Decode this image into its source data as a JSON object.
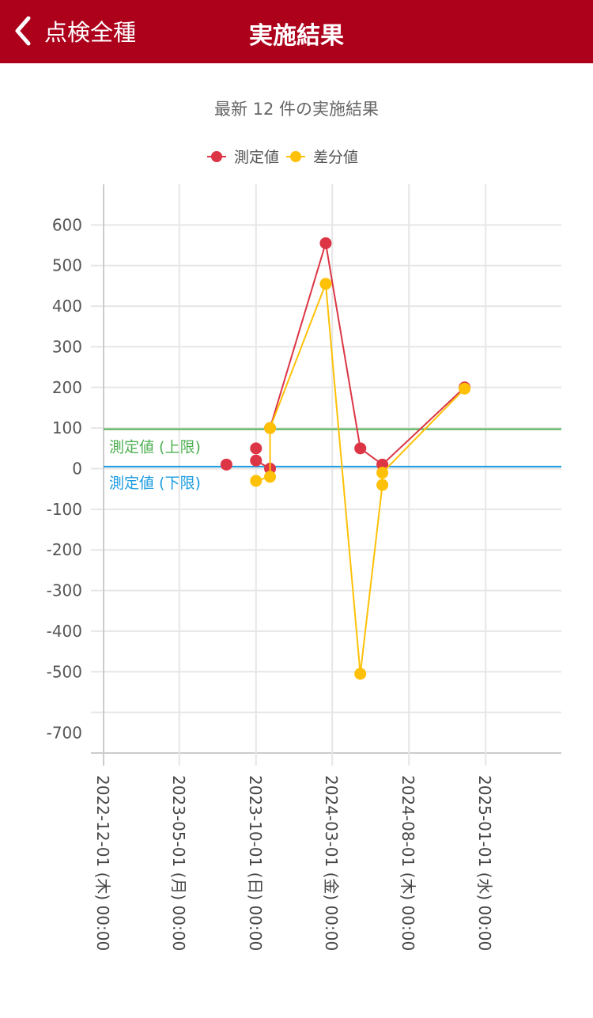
{
  "header": {
    "back_label": "点検全種",
    "title": "実施結果",
    "theme_color": "#ad001b"
  },
  "chart_data": {
    "type": "line",
    "title": "最新 12 件の実施結果",
    "legend_position": "top",
    "grid": true,
    "ylim": [
      -700,
      700
    ],
    "xlim": [
      "2022-12-01",
      "2025-06-01"
    ],
    "y_ticks": [
      "600",
      "500",
      "400",
      "300",
      "200",
      "100",
      "0",
      "-100",
      "-200",
      "-300",
      "-400",
      "-500",
      "-700"
    ],
    "x_ticks": [
      {
        "date": "2022-12-01",
        "label": "2022-12-01 (木) 00:00"
      },
      {
        "date": "2023-05-01",
        "label": "2023-05-01 (月) 00:00"
      },
      {
        "date": "2023-10-01",
        "label": "2023-10-01 (日) 00:00"
      },
      {
        "date": "2024-03-01",
        "label": "2024-03-01 (金) 00:00"
      },
      {
        "date": "2024-08-01",
        "label": "2024-08-01 (木) 00:00"
      },
      {
        "date": "2025-01-01",
        "label": "2025-01-01 (水) 00:00"
      }
    ],
    "series": [
      {
        "name": "測定値",
        "color": "#dc3545",
        "points": [
          [
            "2023-08-03",
            10
          ],
          null,
          [
            "2023-10-01",
            50
          ],
          null,
          [
            "2023-10-01",
            20
          ],
          [
            "2023-10-29",
            0
          ],
          null,
          [
            "2023-10-29",
            100
          ],
          [
            "2024-02-17",
            555
          ],
          [
            "2024-04-26",
            50
          ],
          [
            "2024-06-09",
            10
          ],
          [
            "2024-11-20",
            200
          ]
        ]
      },
      {
        "name": "差分値",
        "color": "#ffc107",
        "points": [
          [
            "2023-10-01",
            -30
          ],
          [
            "2023-10-29",
            -20
          ],
          [
            "2023-10-29",
            100
          ],
          [
            "2024-02-17",
            455
          ],
          [
            "2024-04-26",
            -505
          ],
          [
            "2024-06-09",
            -40
          ],
          [
            "2024-06-09",
            -10
          ],
          [
            "2024-11-20",
            197
          ]
        ]
      }
    ],
    "reference_lines": [
      {
        "label": "測定値 (上限)",
        "value": 97,
        "color": "#4caf50"
      },
      {
        "label": "測定値 (下限)",
        "value": 5,
        "color": "#1a9be0"
      }
    ]
  }
}
